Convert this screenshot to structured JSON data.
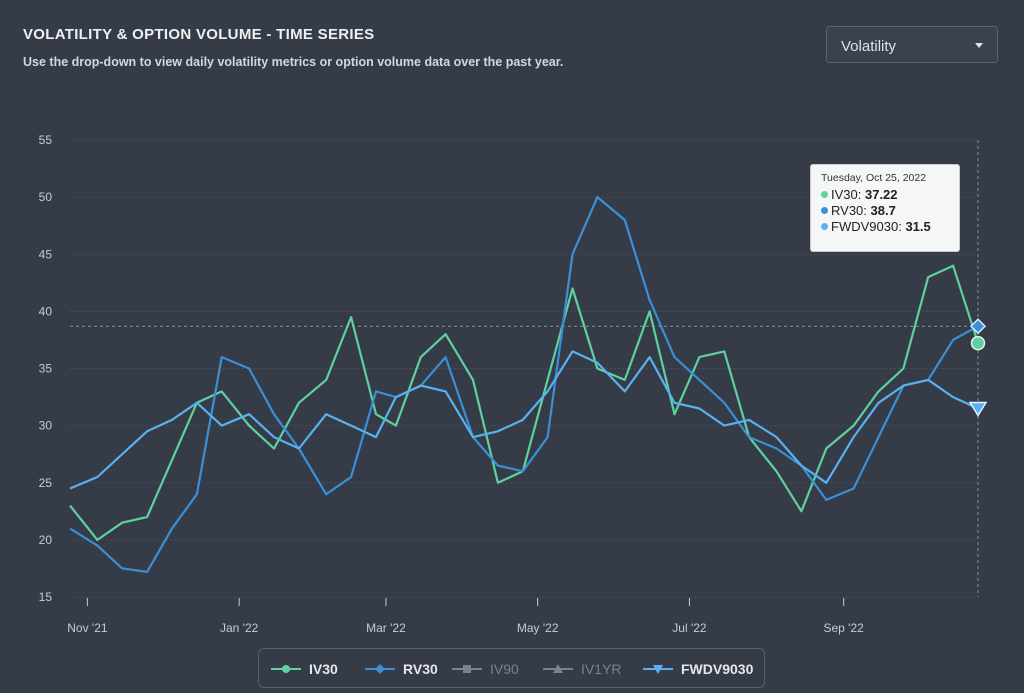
{
  "header": {
    "title": "VOLATILITY & OPTION VOLUME - TIME SERIES",
    "subtitle": "Use the drop-down to view daily volatility metrics or option volume data over the past year."
  },
  "dropdown": {
    "selected": "Volatility"
  },
  "tooltip": {
    "date": "Tuesday, Oct 25, 2022",
    "rows": [
      {
        "name": "IV30",
        "value": "37.22",
        "color": "#5fd0a0"
      },
      {
        "name": "RV30",
        "value": "38.7",
        "color": "#3a8fd6"
      },
      {
        "name": "FWDV9030",
        "value": "31.5",
        "color": "#59b1ef"
      }
    ]
  },
  "legend": [
    {
      "name": "IV30",
      "enabled": true,
      "color": "#5fd0a0",
      "marker": "circle"
    },
    {
      "name": "RV30",
      "enabled": true,
      "color": "#3a8fd6",
      "marker": "diamond"
    },
    {
      "name": "IV90",
      "enabled": false,
      "color": "#7c8289",
      "marker": "square"
    },
    {
      "name": "IV1YR",
      "enabled": false,
      "color": "#7c8289",
      "marker": "triangle"
    },
    {
      "name": "FWDV9030",
      "enabled": true,
      "color": "#59b1ef",
      "marker": "triangle-down"
    }
  ],
  "chart_data": {
    "type": "line",
    "ylim": [
      15,
      55
    ],
    "yticks": [
      15,
      20,
      25,
      30,
      35,
      40,
      45,
      50,
      55
    ],
    "xlim": [
      "2021-10-25",
      "2022-10-25"
    ],
    "xticks": [
      {
        "date": "2021-11-01",
        "label": "Nov '21"
      },
      {
        "date": "2022-01-01",
        "label": "Jan '22"
      },
      {
        "date": "2022-03-01",
        "label": "Mar '22"
      },
      {
        "date": "2022-05-01",
        "label": "May '22"
      },
      {
        "date": "2022-07-01",
        "label": "Jul '22"
      },
      {
        "date": "2022-09-01",
        "label": "Sep '22"
      }
    ],
    "grid": true,
    "crosshair": {
      "date": "2022-10-25",
      "y": 38.7
    },
    "series": [
      {
        "name": "IV30",
        "color": "#5fd0a0",
        "points": [
          [
            "2021-10-25",
            23.0
          ],
          [
            "2021-11-05",
            20.0
          ],
          [
            "2021-11-15",
            21.5
          ],
          [
            "2021-11-25",
            22.0
          ],
          [
            "2021-12-05",
            27.0
          ],
          [
            "2021-12-15",
            32.0
          ],
          [
            "2021-12-25",
            33.0
          ],
          [
            "2022-01-05",
            30.0
          ],
          [
            "2022-01-15",
            28.0
          ],
          [
            "2022-01-25",
            32.0
          ],
          [
            "2022-02-05",
            34.0
          ],
          [
            "2022-02-15",
            39.5
          ],
          [
            "2022-02-25",
            31.0
          ],
          [
            "2022-03-05",
            30.0
          ],
          [
            "2022-03-15",
            36.0
          ],
          [
            "2022-03-25",
            38.0
          ],
          [
            "2022-04-05",
            34.0
          ],
          [
            "2022-04-15",
            25.0
          ],
          [
            "2022-04-25",
            26.0
          ],
          [
            "2022-05-05",
            34.0
          ],
          [
            "2022-05-15",
            42.0
          ],
          [
            "2022-05-25",
            35.0
          ],
          [
            "2022-06-05",
            34.0
          ],
          [
            "2022-06-15",
            40.0
          ],
          [
            "2022-06-25",
            31.0
          ],
          [
            "2022-07-05",
            36.0
          ],
          [
            "2022-07-15",
            36.5
          ],
          [
            "2022-07-25",
            29.0
          ],
          [
            "2022-08-05",
            26.0
          ],
          [
            "2022-08-15",
            22.5
          ],
          [
            "2022-08-25",
            28.0
          ],
          [
            "2022-09-05",
            30.0
          ],
          [
            "2022-09-15",
            33.0
          ],
          [
            "2022-09-25",
            35.0
          ],
          [
            "2022-10-05",
            43.0
          ],
          [
            "2022-10-15",
            44.0
          ],
          [
            "2022-10-25",
            37.22
          ]
        ]
      },
      {
        "name": "RV30",
        "color": "#3a8fd6",
        "points": [
          [
            "2021-10-25",
            21.0
          ],
          [
            "2021-11-05",
            19.5
          ],
          [
            "2021-11-15",
            17.5
          ],
          [
            "2021-11-25",
            17.2
          ],
          [
            "2021-12-05",
            21.0
          ],
          [
            "2021-12-15",
            24.0
          ],
          [
            "2021-12-25",
            36.0
          ],
          [
            "2022-01-05",
            35.0
          ],
          [
            "2022-01-15",
            31.0
          ],
          [
            "2022-01-25",
            28.0
          ],
          [
            "2022-02-05",
            24.0
          ],
          [
            "2022-02-15",
            25.5
          ],
          [
            "2022-02-25",
            33.0
          ],
          [
            "2022-03-05",
            32.5
          ],
          [
            "2022-03-15",
            33.5
          ],
          [
            "2022-03-25",
            36.0
          ],
          [
            "2022-04-05",
            29.0
          ],
          [
            "2022-04-15",
            26.5
          ],
          [
            "2022-04-25",
            26.0
          ],
          [
            "2022-05-05",
            29.0
          ],
          [
            "2022-05-15",
            45.0
          ],
          [
            "2022-05-25",
            50.0
          ],
          [
            "2022-06-05",
            48.0
          ],
          [
            "2022-06-15",
            41.0
          ],
          [
            "2022-06-25",
            36.0
          ],
          [
            "2022-07-05",
            34.0
          ],
          [
            "2022-07-15",
            32.0
          ],
          [
            "2022-07-25",
            29.0
          ],
          [
            "2022-08-05",
            28.0
          ],
          [
            "2022-08-15",
            26.5
          ],
          [
            "2022-08-25",
            23.5
          ],
          [
            "2022-09-05",
            24.5
          ],
          [
            "2022-09-15",
            29.0
          ],
          [
            "2022-09-25",
            33.5
          ],
          [
            "2022-10-05",
            34.0
          ],
          [
            "2022-10-15",
            37.5
          ],
          [
            "2022-10-25",
            38.7
          ]
        ]
      },
      {
        "name": "FWDV9030",
        "color": "#59b1ef",
        "points": [
          [
            "2021-10-25",
            24.5
          ],
          [
            "2021-11-05",
            25.5
          ],
          [
            "2021-11-15",
            27.5
          ],
          [
            "2021-11-25",
            29.5
          ],
          [
            "2021-12-05",
            30.5
          ],
          [
            "2021-12-15",
            32.0
          ],
          [
            "2021-12-25",
            30.0
          ],
          [
            "2022-01-05",
            31.0
          ],
          [
            "2022-01-15",
            29.0
          ],
          [
            "2022-01-25",
            28.0
          ],
          [
            "2022-02-05",
            31.0
          ],
          [
            "2022-02-15",
            30.0
          ],
          [
            "2022-02-25",
            29.0
          ],
          [
            "2022-03-05",
            32.5
          ],
          [
            "2022-03-15",
            33.5
          ],
          [
            "2022-03-25",
            33.0
          ],
          [
            "2022-04-05",
            29.0
          ],
          [
            "2022-04-15",
            29.5
          ],
          [
            "2022-04-25",
            30.5
          ],
          [
            "2022-05-05",
            33.0
          ],
          [
            "2022-05-15",
            36.5
          ],
          [
            "2022-05-25",
            35.5
          ],
          [
            "2022-06-05",
            33.0
          ],
          [
            "2022-06-15",
            36.0
          ],
          [
            "2022-06-25",
            32.0
          ],
          [
            "2022-07-05",
            31.5
          ],
          [
            "2022-07-15",
            30.0
          ],
          [
            "2022-07-25",
            30.5
          ],
          [
            "2022-08-05",
            29.0
          ],
          [
            "2022-08-15",
            26.5
          ],
          [
            "2022-08-25",
            25.0
          ],
          [
            "2022-09-05",
            29.0
          ],
          [
            "2022-09-15",
            32.0
          ],
          [
            "2022-09-25",
            33.5
          ],
          [
            "2022-10-05",
            34.0
          ],
          [
            "2022-10-15",
            32.5
          ],
          [
            "2022-10-25",
            31.5
          ]
        ]
      }
    ]
  }
}
